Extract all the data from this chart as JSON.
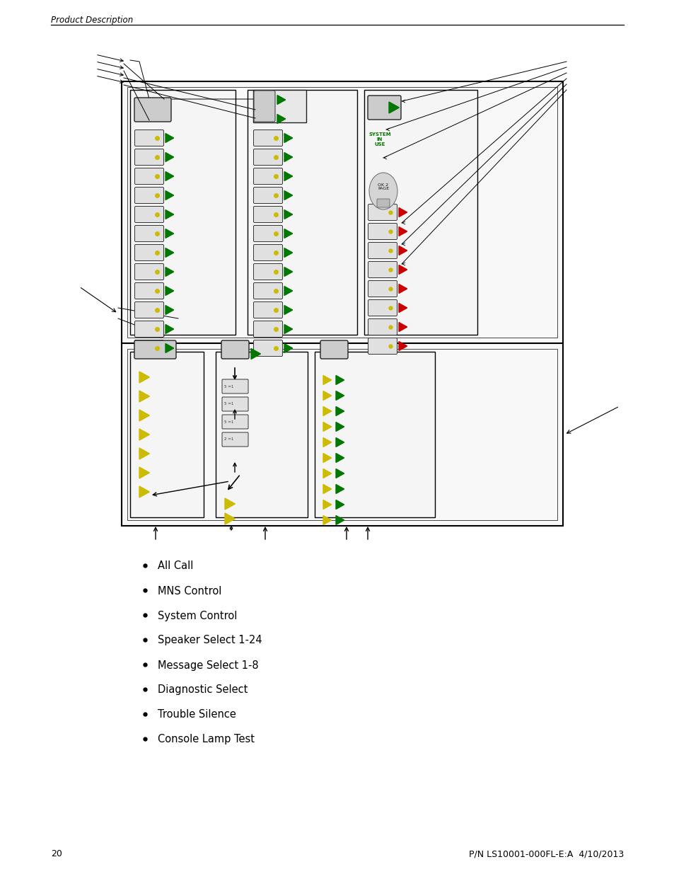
{
  "page_header": "Product Description",
  "page_number": "20",
  "footer_text": "P/N LS10001-000FL-E:A  4/10/2013",
  "bullet_items": [
    "All Call",
    "MNS Control",
    "System Control",
    "Speaker Select 1-24",
    "Message Select 1-8",
    "Diagnostic Select",
    "Trouble Silence",
    "Console Lamp Test"
  ],
  "bg": "#ffffff",
  "black": "#000000",
  "green": "#007700",
  "yellow": "#ccbb00",
  "red": "#cc0000",
  "gray_btn": "#e0e0e0",
  "gray_dark": "#cccccc"
}
